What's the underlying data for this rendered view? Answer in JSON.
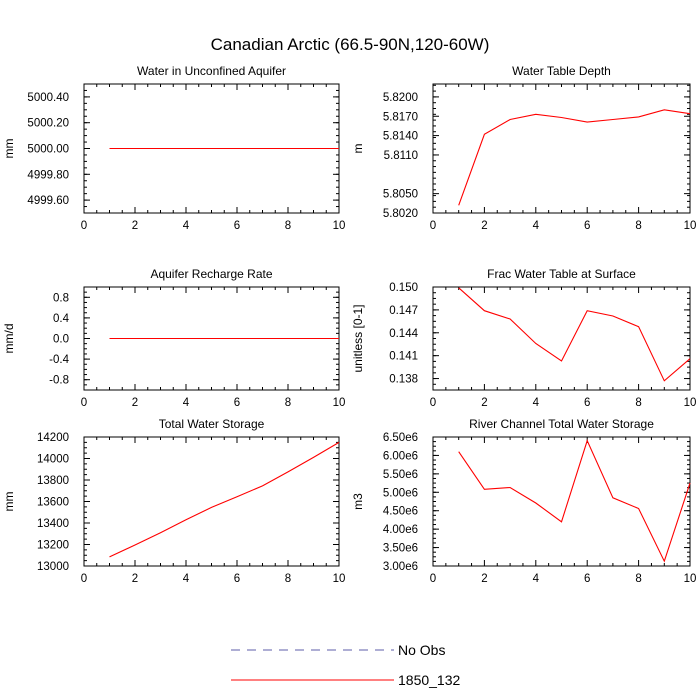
{
  "figure": {
    "title": "Canadian Arctic (66.5-90N,120-60W)"
  },
  "legend": {
    "items": [
      {
        "label": "No Obs",
        "color": "#5c5ca8",
        "dashed": true
      },
      {
        "label": "1850_132",
        "color": "#ff0000",
        "dashed": false
      }
    ]
  },
  "chart_data": [
    {
      "type": "line",
      "title": "Water in Unconfined Aquifer",
      "ylabel": "mm",
      "xlim": [
        0,
        10
      ],
      "ylim": [
        4999.5,
        5000.5
      ],
      "xticks": [
        0,
        2,
        4,
        6,
        8,
        10
      ],
      "yticks": [
        4999.6,
        4999.8,
        5000.0,
        5000.2,
        5000.4
      ],
      "ytick_labels": [
        "4999.60",
        "4999.80",
        "5000.00",
        "5000.20",
        "5000.40"
      ],
      "series": [
        {
          "name": "1850_132",
          "color": "#ff0000",
          "x": [
            1,
            2,
            3,
            4,
            5,
            6,
            7,
            8,
            9,
            10
          ],
          "y": [
            5000.0,
            5000.0,
            5000.0,
            5000.0,
            5000.0,
            5000.0,
            5000.0,
            5000.0,
            5000.0,
            5000.0
          ]
        }
      ]
    },
    {
      "type": "line",
      "title": "Water Table Depth",
      "ylabel": "m",
      "xlim": [
        0,
        10
      ],
      "ylim": [
        5.802,
        5.822
      ],
      "xticks": [
        0,
        2,
        4,
        6,
        8,
        10
      ],
      "yticks": [
        5.802,
        5.805,
        5.811,
        5.814,
        5.817,
        5.82
      ],
      "ytick_labels": [
        "5.8020",
        "5.8050",
        "5.8110",
        "5.8140",
        "5.8170",
        "5.8200"
      ],
      "series": [
        {
          "name": "1850_132",
          "color": "#ff0000",
          "x": [
            1,
            2,
            3,
            4,
            5,
            6,
            7,
            8,
            9,
            10
          ],
          "y": [
            5.8032,
            5.8142,
            5.8165,
            5.8173,
            5.8168,
            5.8161,
            5.8165,
            5.8169,
            5.818,
            5.8174
          ]
        }
      ]
    },
    {
      "type": "line",
      "title": "Aquifer Recharge Rate",
      "ylabel": "mm/d",
      "xlim": [
        0,
        10
      ],
      "ylim": [
        -1.0,
        1.0
      ],
      "xticks": [
        0,
        2,
        4,
        6,
        8,
        10
      ],
      "yticks": [
        -0.8,
        -0.4,
        0.0,
        0.4,
        0.8
      ],
      "ytick_labels": [
        "-0.8",
        "-0.4",
        "0.0",
        "0.4",
        "0.8"
      ],
      "series": [
        {
          "name": "1850_132",
          "color": "#ff0000",
          "x": [
            1,
            2,
            3,
            4,
            5,
            6,
            7,
            8,
            9,
            10
          ],
          "y": [
            0,
            0,
            0,
            0,
            0,
            0,
            0,
            0,
            0,
            0
          ]
        }
      ]
    },
    {
      "type": "line",
      "title": "Frac Water Table at Surface",
      "ylabel": "unitless [0-1]",
      "xlim": [
        0,
        10
      ],
      "ylim": [
        0.1365,
        0.15
      ],
      "xticks": [
        0,
        2,
        4,
        6,
        8,
        10
      ],
      "yticks": [
        0.138,
        0.141,
        0.144,
        0.147,
        0.15
      ],
      "ytick_labels": [
        "0.138",
        "0.141",
        "0.144",
        "0.147",
        "0.150"
      ],
      "series": [
        {
          "name": "1850_132",
          "color": "#ff0000",
          "x": [
            1,
            2,
            3,
            4,
            5,
            6,
            7,
            8,
            9,
            10
          ],
          "y": [
            0.1499,
            0.1469,
            0.1458,
            0.1426,
            0.1403,
            0.1469,
            0.1462,
            0.1448,
            0.1377,
            0.1406
          ]
        }
      ]
    },
    {
      "type": "line",
      "title": "Total Water Storage",
      "ylabel": "mm",
      "xlim": [
        0,
        10
      ],
      "ylim": [
        13000,
        14200
      ],
      "xticks": [
        0,
        2,
        4,
        6,
        8,
        10
      ],
      "yticks": [
        13000,
        13200,
        13400,
        13600,
        13800,
        14000,
        14200
      ],
      "ytick_labels": [
        "13000",
        "13200",
        "13400",
        "13600",
        "13800",
        "14000",
        "14200"
      ],
      "series": [
        {
          "name": "1850_132",
          "color": "#ff0000",
          "x": [
            1,
            2,
            3,
            4,
            5,
            6,
            7,
            8,
            9,
            10
          ],
          "y": [
            13085,
            13195,
            13310,
            13430,
            13545,
            13645,
            13745,
            13875,
            14010,
            14150
          ]
        }
      ]
    },
    {
      "type": "line",
      "title": "River Channel Total Water Storage",
      "ylabel": "m3",
      "xlim": [
        0,
        10
      ],
      "ylim": [
        3000000,
        6500000
      ],
      "xticks": [
        0,
        2,
        4,
        6,
        8,
        10
      ],
      "yticks": [
        3000000,
        3500000,
        4000000,
        4500000,
        5000000,
        5500000,
        6000000,
        6500000
      ],
      "ytick_labels": [
        "3.00e6",
        "3.50e6",
        "4.00e6",
        "4.50e6",
        "5.00e6",
        "5.50e6",
        "6.00e6",
        "6.50e6"
      ],
      "series": [
        {
          "name": "1850_132",
          "color": "#ff0000",
          "x": [
            1,
            2,
            3,
            4,
            5,
            6,
            7,
            8,
            9,
            10
          ],
          "y": [
            6100000,
            5080000,
            5130000,
            4710000,
            4200000,
            6400000,
            4850000,
            4560000,
            3130000,
            5250000
          ]
        }
      ]
    }
  ]
}
